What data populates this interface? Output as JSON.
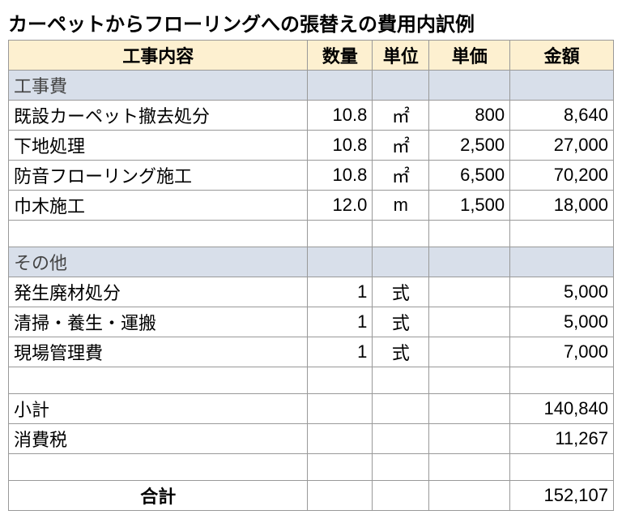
{
  "title": "カーペットからフローリングへの張替えの費用内訳例",
  "headers": {
    "c1": "工事内容",
    "c2": "数量",
    "c3": "単位",
    "c4": "単価",
    "c5": "金額"
  },
  "section1": "工事費",
  "r1": {
    "name": "既設カーペット撤去処分",
    "qty": "10.8",
    "unit": "㎡",
    "price": "800",
    "amount": "8,640"
  },
  "r2": {
    "name": "下地処理",
    "qty": "10.8",
    "unit": "㎡",
    "price": "2,500",
    "amount": "27,000"
  },
  "r3": {
    "name": "防音フローリング施工",
    "qty": "10.8",
    "unit": "㎡",
    "price": "6,500",
    "amount": "70,200"
  },
  "r4": {
    "name": "巾木施工",
    "qty": "12.0",
    "unit": "m",
    "price": "1,500",
    "amount": "18,000"
  },
  "section2": "その他",
  "r5": {
    "name": "発生廃材処分",
    "qty": "1",
    "unit": "式",
    "price": "",
    "amount": "5,000"
  },
  "r6": {
    "name": "清掃・養生・運搬",
    "qty": "1",
    "unit": "式",
    "price": "",
    "amount": "5,000"
  },
  "r7": {
    "name": "現場管理費",
    "qty": "1",
    "unit": "式",
    "price": "",
    "amount": "7,000"
  },
  "subtotal": {
    "label": "小計",
    "amount": "140,840"
  },
  "tax": {
    "label": "消費税",
    "amount": "11,267"
  },
  "total": {
    "label": "合計",
    "amount": "152,107"
  },
  "colors": {
    "header_bg": "#fdf0d0",
    "section_bg": "#d8dfea",
    "border": "#999999",
    "text": "#000000"
  }
}
